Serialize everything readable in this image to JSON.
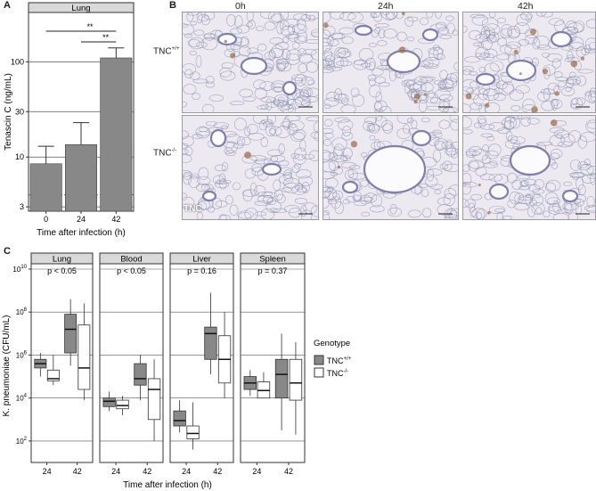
{
  "panel_a": {
    "letter": "A",
    "chart_data": {
      "type": "bar",
      "title": "Lung",
      "categories": [
        "0",
        "24",
        "42"
      ],
      "values": [
        8.5,
        13.5,
        110
      ],
      "error_upper": [
        13,
        23,
        140
      ],
      "ylabel": "Tenascin C (ng/mL)",
      "xlabel": "Time after infection (h)",
      "yscale": "log",
      "yticks": [
        "3",
        "10",
        "30",
        "100"
      ],
      "ylim": [
        2.7,
        330
      ],
      "detection_limit": 4,
      "significance": [
        {
          "from": "0",
          "to": "42",
          "label": "**"
        },
        {
          "from": "24",
          "to": "42",
          "label": "**"
        }
      ],
      "bar_color": "#888888"
    }
  },
  "panel_b": {
    "letter": "B",
    "columns": [
      "0h",
      "24h",
      "42h"
    ],
    "row_labels": [
      {
        "base": "TNC",
        "sup": "+/+"
      },
      {
        "base": "TNC",
        "sup": "-/-"
      }
    ],
    "corner_label": "TNC",
    "tissue_color": "#8c8cb0",
    "stain_color": "#9a6a4a"
  },
  "panel_c": {
    "letter": "C",
    "chart_data": {
      "type": "box",
      "ylabel": "K. pneumoniae (CFU/mL)",
      "xlabel": "Time after infection (h)",
      "yscale": "log",
      "ytick_exponents": [
        "2",
        "4",
        "6",
        "8",
        "10"
      ],
      "ylim": [
        10,
        10000000000
      ],
      "categories": [
        "24",
        "42"
      ],
      "legend_title": "Genotype",
      "legend": [
        {
          "base": "TNC",
          "sup": "+/+",
          "color": "#888888"
        },
        {
          "base": "TNC",
          "sup": "-/-",
          "color": "#ffffff"
        }
      ],
      "facets": [
        {
          "name": "Lung",
          "pvalue": "p < 0.05",
          "boxes": [
            {
              "time": "24",
              "genotype": "TNC+/+",
              "min": 5.0,
              "q1": 5.4,
              "median": 5.6,
              "q3": 5.8,
              "max": 6.1
            },
            {
              "time": "24",
              "genotype": "TNC-/-",
              "min": 4.6,
              "q1": 4.8,
              "median": 4.9,
              "q3": 5.3,
              "max": 6.0
            },
            {
              "time": "42",
              "genotype": "TNC+/+",
              "min": 5.5,
              "q1": 6.1,
              "median": 7.2,
              "q3": 7.9,
              "max": 8.6
            },
            {
              "time": "42",
              "genotype": "TNC-/-",
              "min": 3.9,
              "q1": 4.4,
              "median": 5.4,
              "q3": 7.4,
              "max": 8.4
            }
          ]
        },
        {
          "name": "Blood",
          "pvalue": "p < 0.05",
          "boxes": [
            {
              "time": "24",
              "genotype": "TNC+/+",
              "min": 3.4,
              "q1": 3.6,
              "median": 3.85,
              "q3": 4.0,
              "max": 4.3
            },
            {
              "time": "24",
              "genotype": "TNC-/-",
              "min": 3.2,
              "q1": 3.5,
              "median": 3.65,
              "q3": 3.9,
              "max": 4.1
            },
            {
              "time": "42",
              "genotype": "TNC+/+",
              "min": 3.9,
              "q1": 4.6,
              "median": 4.9,
              "q3": 5.6,
              "max": 6.0
            },
            {
              "time": "42",
              "genotype": "TNC-/-",
              "min": 2.0,
              "q1": 3.0,
              "median": 4.4,
              "q3": 4.9,
              "max": 5.8
            }
          ]
        },
        {
          "name": "Liver",
          "pvalue": "p = 0.16",
          "boxes": [
            {
              "time": "24",
              "genotype": "TNC+/+",
              "min": 2.4,
              "q1": 2.7,
              "median": 2.95,
              "q3": 3.4,
              "max": 3.9
            },
            {
              "time": "24",
              "genotype": "TNC-/-",
              "min": 1.6,
              "q1": 2.1,
              "median": 2.35,
              "q3": 2.7,
              "max": 3.8
            },
            {
              "time": "42",
              "genotype": "TNC+/+",
              "min": 5.1,
              "q1": 5.8,
              "median": 7.0,
              "q3": 7.3,
              "max": 8.9
            },
            {
              "time": "42",
              "genotype": "TNC-/-",
              "min": 4.0,
              "q1": 4.7,
              "median": 5.8,
              "q3": 6.9,
              "max": 8.0
            }
          ]
        },
        {
          "name": "Spleen",
          "pvalue": "p = 0.37",
          "boxes": [
            {
              "time": "24",
              "genotype": "TNC+/+",
              "min": 4.1,
              "q1": 4.4,
              "median": 4.7,
              "q3": 5.0,
              "max": 5.3
            },
            {
              "time": "24",
              "genotype": "TNC-/-",
              "min": 4.0,
              "q1": 4.0,
              "median": 4.35,
              "q3": 4.75,
              "max": 5.2
            },
            {
              "time": "42",
              "genotype": "TNC+/+",
              "min": 2.5,
              "q1": 4.0,
              "median": 5.1,
              "q3": 5.8,
              "max": 7.0
            },
            {
              "time": "42",
              "genotype": "TNC-/-",
              "min": 2.3,
              "q1": 3.9,
              "median": 4.7,
              "q3": 5.8,
              "max": 6.6
            }
          ]
        }
      ]
    }
  }
}
